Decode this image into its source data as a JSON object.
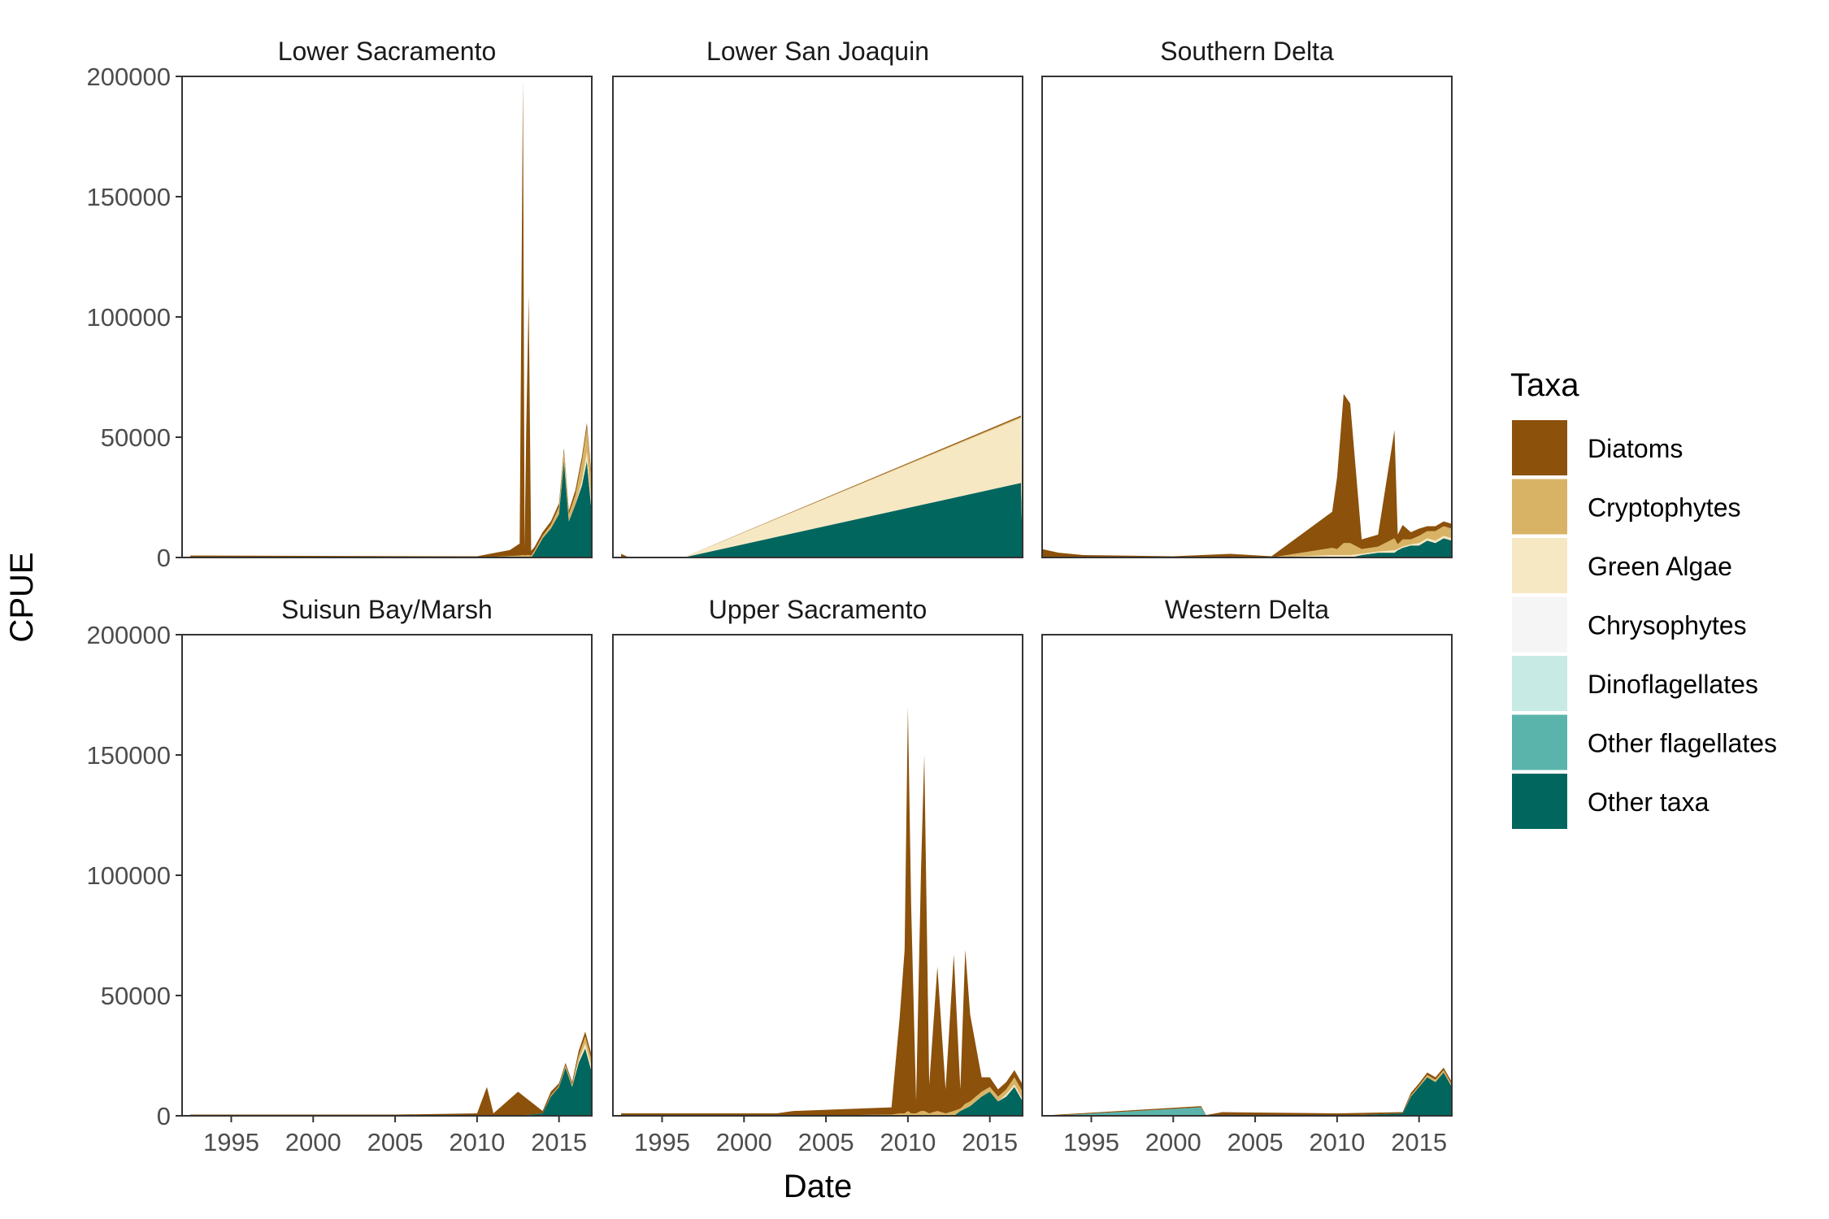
{
  "chart_data": {
    "type": "area",
    "xlabel": "Date",
    "ylabel": "CPUE",
    "xlim": [
      1992,
      2017
    ],
    "ylim": [
      0,
      200000
    ],
    "x_ticks": [
      1995,
      2000,
      2005,
      2010,
      2015
    ],
    "y_ticks": [
      0,
      50000,
      100000,
      150000,
      200000
    ],
    "grid": false,
    "legend_title": "Taxa",
    "legend_position": "right",
    "taxa": [
      {
        "name": "Diatoms",
        "color": "#8C510A"
      },
      {
        "name": "Cryptophytes",
        "color": "#D8B365"
      },
      {
        "name": "Green Algae",
        "color": "#F6E8C3"
      },
      {
        "name": "Chrysophytes",
        "color": "#F5F5F5"
      },
      {
        "name": "Dinoflagellates",
        "color": "#C7EAE5"
      },
      {
        "name": "Other flagellates",
        "color": "#5AB4AC"
      },
      {
        "name": "Other taxa",
        "color": "#01665E"
      }
    ],
    "panels": [
      {
        "title": "Lower Sacramento",
        "x": [
          1992.5,
          2010.0,
          2011.0,
          2012.0,
          2012.6,
          2012.8,
          2012.9,
          2013.0,
          2013.15,
          2013.3,
          2013.5,
          2014.0,
          2014.5,
          2015.0,
          2015.3,
          2015.6,
          2016.0,
          2016.4,
          2016.7,
          2017.0
        ],
        "series": [
          {
            "name": "Diatoms",
            "values": [
              800,
              500,
              1500,
              2500,
              5000,
              198000,
              3000,
              52000,
              108000,
              2000,
              1500,
              1500,
              1500,
              1500,
              1500,
              1500,
              2000,
              2000,
              2000,
              2000
            ]
          },
          {
            "name": "Cryptophytes",
            "values": [
              0,
              0,
              300,
              600,
              800,
              1000,
              800,
              1000,
              1000,
              800,
              800,
              1000,
              1500,
              3000,
              4000,
              3000,
              4000,
              8000,
              10000,
              10000
            ]
          },
          {
            "name": "Green Algae",
            "values": [
              0,
              0,
              0,
              0,
              0,
              0,
              0,
              0,
              0,
              0,
              0,
              0,
              0,
              0,
              0,
              0,
              0,
              2000,
              4000,
              3000
            ]
          },
          {
            "name": "Chrysophytes",
            "values": [
              0,
              0,
              0,
              0,
              0,
              0,
              0,
              0,
              0,
              0,
              0,
              0,
              0,
              0,
              0,
              0,
              0,
              0,
              0,
              0
            ]
          },
          {
            "name": "Dinoflagellates",
            "values": [
              0,
              0,
              0,
              0,
              0,
              0,
              0,
              0,
              0,
              0,
              0,
              0,
              0,
              0,
              0,
              0,
              0,
              0,
              0,
              0
            ]
          },
          {
            "name": "Other flagellates",
            "values": [
              0,
              0,
              0,
              0,
              0,
              0,
              0,
              0,
              0,
              0,
              0,
              0,
              0,
              0,
              0,
              0,
              0,
              0,
              0,
              0
            ]
          },
          {
            "name": "Other taxa",
            "values": [
              0,
              0,
              0,
              0,
              0,
              0,
              0,
              0,
              0,
              0,
              2000,
              8000,
              12000,
              18000,
              40000,
              15000,
              22000,
              30000,
              40000,
              18000
            ]
          }
        ]
      },
      {
        "title": "Lower San Joaquin",
        "x": [
          1992.5,
          1993.0,
          1996.3,
          2016.9,
          2017.0
        ],
        "series": [
          {
            "name": "Diatoms",
            "values": [
              1500,
              0,
              0,
              500,
              0
            ]
          },
          {
            "name": "Cryptophytes",
            "values": [
              0,
              0,
              0,
              500,
              0
            ]
          },
          {
            "name": "Green Algae",
            "values": [
              0,
              0,
              0,
              27000,
              0
            ]
          },
          {
            "name": "Chrysophytes",
            "values": [
              0,
              0,
              0,
              0,
              0
            ]
          },
          {
            "name": "Dinoflagellates",
            "values": [
              0,
              0,
              0,
              0,
              0
            ]
          },
          {
            "name": "Other flagellates",
            "values": [
              0,
              0,
              0,
              0,
              0
            ]
          },
          {
            "name": "Other taxa",
            "values": [
              0,
              0,
              0,
              31000,
              0
            ]
          }
        ]
      },
      {
        "title": "Southern Delta",
        "x": [
          1992.0,
          1993.0,
          1994.5,
          2000.0,
          2003.5,
          2006.0,
          2009.7,
          2010.0,
          2010.4,
          2010.8,
          2011.5,
          2012.5,
          2013.5,
          2013.7,
          2014.0,
          2014.5,
          2015.0,
          2015.5,
          2016.0,
          2016.5,
          2017.0
        ],
        "series": [
          {
            "name": "Diatoms",
            "values": [
              3500,
              2000,
              1000,
              500,
              1500,
              500,
              15000,
              30000,
              62000,
              58000,
              4000,
              5000,
              45000,
              4000,
              6000,
              3000,
              3000,
              2000,
              2000,
              2000,
              2000
            ]
          },
          {
            "name": "Cryptophytes",
            "values": [
              0,
              0,
              0,
              0,
              0,
              0,
              3000,
              2500,
              5000,
              5000,
              2000,
              2000,
              5000,
              2000,
              3000,
              2000,
              3000,
              3000,
              4000,
              4000,
              4000
            ]
          },
          {
            "name": "Green Algae",
            "values": [
              0,
              0,
              0,
              0,
              0,
              0,
              1000,
              1000,
              1000,
              1000,
              500,
              500,
              1000,
              500,
              500,
              500,
              1000,
              1000,
              1000,
              1000,
              1000
            ]
          },
          {
            "name": "Chrysophytes",
            "values": [
              0,
              0,
              0,
              0,
              0,
              0,
              0,
              0,
              0,
              0,
              0,
              0,
              0,
              0,
              0,
              0,
              0,
              0,
              0,
              0,
              0
            ]
          },
          {
            "name": "Dinoflagellates",
            "values": [
              0,
              0,
              0,
              0,
              0,
              0,
              0,
              0,
              0,
              0,
              0,
              0,
              0,
              0,
              0,
              0,
              0,
              0,
              0,
              0,
              0
            ]
          },
          {
            "name": "Other flagellates",
            "values": [
              0,
              0,
              0,
              0,
              0,
              0,
              0,
              0,
              0,
              0,
              0,
              0,
              0,
              0,
              0,
              0,
              0,
              0,
              0,
              0,
              0
            ]
          },
          {
            "name": "Other taxa",
            "values": [
              0,
              0,
              0,
              0,
              0,
              0,
              0,
              0,
              0,
              0,
              1000,
              2000,
              2000,
              3000,
              4000,
              5000,
              5000,
              7000,
              6000,
              8000,
              7000
            ]
          }
        ]
      },
      {
        "title": "Suisun Bay/Marsh",
        "x": [
          1992.5,
          2005.0,
          2010.0,
          2010.6,
          2011.0,
          2012.5,
          2014.0,
          2014.5,
          2015.0,
          2015.4,
          2015.8,
          2016.2,
          2016.6,
          2017.0
        ],
        "series": [
          {
            "name": "Diatoms",
            "values": [
              500,
              500,
              1000,
              12000,
              1000,
              10000,
              1000,
              1500,
              1000,
              1000,
              1000,
              2000,
              2000,
              2000
            ]
          },
          {
            "name": "Cryptophytes",
            "values": [
              0,
              0,
              0,
              0,
              0,
              0,
              0,
              500,
              500,
              1000,
              1000,
              2000,
              3000,
              3000
            ]
          },
          {
            "name": "Green Algae",
            "values": [
              0,
              0,
              0,
              0,
              0,
              0,
              0,
              0,
              0,
              0,
              0,
              1000,
              2000,
              2000
            ]
          },
          {
            "name": "Chrysophytes",
            "values": [
              0,
              0,
              0,
              0,
              0,
              0,
              0,
              0,
              0,
              0,
              0,
              0,
              0,
              0
            ]
          },
          {
            "name": "Dinoflagellates",
            "values": [
              0,
              0,
              0,
              0,
              0,
              0,
              0,
              0,
              0,
              0,
              0,
              0,
              0,
              0
            ]
          },
          {
            "name": "Other flagellates",
            "values": [
              0,
              0,
              0,
              0,
              0,
              0,
              0,
              0,
              0,
              0,
              0,
              0,
              0,
              0
            ]
          },
          {
            "name": "Other taxa",
            "values": [
              0,
              0,
              0,
              0,
              0,
              0,
              1000,
              8000,
              12000,
              20000,
              12000,
              22000,
              28000,
              18000
            ]
          }
        ]
      },
      {
        "title": "Upper Sacramento",
        "x": [
          1992.5,
          2002.0,
          2003.0,
          2009.0,
          2009.5,
          2009.8,
          2010.0,
          2010.2,
          2010.5,
          2010.8,
          2011.0,
          2011.3,
          2011.8,
          2012.3,
          2012.8,
          2013.2,
          2013.5,
          2013.8,
          2014.5,
          2015.0,
          2015.5,
          2016.0,
          2016.5,
          2017.0
        ],
        "series": [
          {
            "name": "Diatoms",
            "values": [
              1000,
              1000,
              2000,
              3000,
              40000,
              68000,
              168000,
              86000,
              5000,
              100000,
              148000,
              12000,
              60000,
              10000,
              65000,
              8000,
              64000,
              36000,
              6000,
              4000,
              3000,
              3000,
              3000,
              3000
            ]
          },
          {
            "name": "Cryptophytes",
            "values": [
              0,
              0,
              0,
              500,
              1000,
              1000,
              2000,
              1000,
              1000,
              2000,
              2000,
              1000,
              2000,
              1000,
              2000,
              1000,
              2000,
              2000,
              2000,
              2000,
              2000,
              2000,
              3000,
              3000
            ]
          },
          {
            "name": "Green Algae",
            "values": [
              0,
              0,
              0,
              0,
              0,
              0,
              0,
              0,
              0,
              0,
              0,
              0,
              0,
              0,
              0,
              0,
              0,
              0,
              0,
              0,
              0,
              1000,
              1000,
              1000
            ]
          },
          {
            "name": "Chrysophytes",
            "values": [
              0,
              0,
              0,
              0,
              0,
              0,
              0,
              0,
              0,
              0,
              0,
              0,
              0,
              0,
              0,
              0,
              0,
              0,
              0,
              0,
              0,
              0,
              0,
              0
            ]
          },
          {
            "name": "Dinoflagellates",
            "values": [
              0,
              0,
              0,
              0,
              0,
              0,
              0,
              0,
              0,
              0,
              0,
              0,
              0,
              0,
              0,
              0,
              0,
              0,
              0,
              0,
              0,
              0,
              0,
              0
            ]
          },
          {
            "name": "Other flagellates",
            "values": [
              0,
              0,
              0,
              0,
              0,
              0,
              0,
              0,
              0,
              0,
              0,
              0,
              0,
              0,
              0,
              0,
              0,
              0,
              0,
              0,
              0,
              0,
              0,
              0
            ]
          },
          {
            "name": "Other taxa",
            "values": [
              0,
              0,
              0,
              0,
              0,
              0,
              0,
              0,
              0,
              0,
              0,
              0,
              0,
              0,
              0,
              2000,
              3000,
              4000,
              8000,
              10000,
              6000,
              8000,
              12000,
              6000
            ]
          }
        ]
      },
      {
        "title": "Western Delta",
        "x": [
          1992.5,
          2001.7,
          2002.0,
          2003.0,
          2010.0,
          2014.0,
          2014.5,
          2015.0,
          2015.5,
          2016.0,
          2016.5,
          2017.0
        ],
        "series": [
          {
            "name": "Diatoms",
            "values": [
              300,
              500,
              300,
              1500,
              1000,
              500,
              1000,
              1000,
              1000,
              1000,
              1000,
              1000
            ]
          },
          {
            "name": "Cryptophytes",
            "values": [
              0,
              0,
              0,
              0,
              0,
              0,
              500,
              500,
              1000,
              1000,
              1000,
              1000
            ]
          },
          {
            "name": "Green Algae",
            "values": [
              0,
              0,
              0,
              0,
              0,
              0,
              0,
              0,
              0,
              0,
              0,
              0
            ]
          },
          {
            "name": "Chrysophytes",
            "values": [
              0,
              0,
              0,
              0,
              0,
              0,
              0,
              0,
              0,
              0,
              0,
              0
            ]
          },
          {
            "name": "Dinoflagellates",
            "values": [
              0,
              0,
              0,
              0,
              0,
              0,
              0,
              0,
              0,
              0,
              0,
              0
            ]
          },
          {
            "name": "Other flagellates",
            "values": [
              0,
              3500,
              0,
              0,
              0,
              0,
              0,
              0,
              0,
              0,
              0,
              0
            ]
          },
          {
            "name": "Other taxa",
            "values": [
              0,
              0,
              0,
              0,
              0,
              1000,
              8000,
              12000,
              16000,
              14000,
              18000,
              12000
            ]
          }
        ]
      }
    ]
  }
}
